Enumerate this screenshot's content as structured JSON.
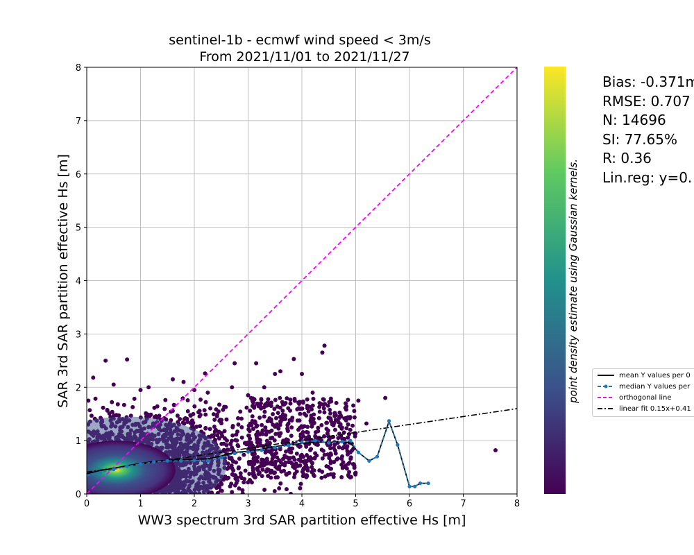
{
  "chart_data": {
    "type": "scatter",
    "title_line1": "sentinel-1b - ecmwf wind speed < 3m/s",
    "title_line2": "From 2021/11/01 to 2021/11/27",
    "xlabel": "WW3 spectrum 3rd SAR partition effective Hs [m]",
    "ylabel": "SAR 3rd SAR partition effective Hs [m]",
    "xlim": [
      0,
      8
    ],
    "ylim": [
      0,
      8
    ],
    "xticks": [
      "0",
      "1",
      "2",
      "3",
      "4",
      "5",
      "6",
      "7",
      "8"
    ],
    "yticks": [
      "0",
      "1",
      "2",
      "3",
      "4",
      "5",
      "6",
      "7",
      "8"
    ],
    "grid": true,
    "colorbar_label": "point density estimate using Gaussian kernels.",
    "colormap": [
      "#440154",
      "#3b528b",
      "#21918c",
      "#5ec962",
      "#fde725"
    ],
    "stats": {
      "bias": "Bias: -0.371m",
      "rmse": "RMSE: 0.707",
      "n": "N: 14696",
      "si": "SI: 77.65%",
      "r": "R: 0.36",
      "linreg": "Lin.reg: y=0."
    },
    "series": [
      {
        "name": "mean Y values per 0",
        "color": "#000000",
        "x": [
          0.0,
          0.25,
          0.5,
          0.75,
          1.0,
          1.25,
          1.5,
          1.75,
          2.0,
          2.25,
          2.5,
          2.75,
          3.0,
          3.25,
          3.5,
          3.75,
          4.0,
          4.25,
          4.5,
          4.75,
          4.9,
          5.05,
          5.25,
          5.4,
          5.62,
          5.78,
          6.0,
          6.1,
          6.2,
          6.35
        ],
        "y": [
          0.38,
          0.44,
          0.48,
          0.53,
          0.57,
          0.61,
          0.63,
          0.64,
          0.65,
          0.66,
          0.71,
          0.78,
          0.8,
          0.84,
          0.89,
          0.92,
          0.95,
          0.97,
          0.97,
          0.97,
          0.96,
          0.78,
          0.62,
          0.7,
          1.36,
          0.92,
          0.14,
          0.14,
          0.2,
          0.2
        ]
      },
      {
        "name": "median Y values per",
        "color": "#1f77b4",
        "x": [
          0.0,
          0.25,
          0.5,
          0.75,
          1.0,
          1.25,
          1.5,
          1.75,
          2.0,
          2.25,
          2.5,
          2.75,
          3.0,
          3.25,
          3.5,
          3.75,
          4.0,
          4.25,
          4.5,
          4.75,
          4.9,
          5.05,
          5.25,
          5.4,
          5.62,
          5.78,
          6.0,
          6.1,
          6.2,
          6.35
        ],
        "y": [
          0.34,
          0.4,
          0.46,
          0.52,
          0.56,
          0.6,
          0.62,
          0.62,
          0.63,
          0.62,
          0.68,
          0.76,
          0.79,
          0.82,
          0.87,
          0.91,
          0.97,
          1.0,
          0.96,
          0.98,
          1.0,
          0.78,
          0.62,
          0.7,
          1.37,
          0.92,
          0.14,
          0.14,
          0.2,
          0.2
        ]
      },
      {
        "name": "orthogonal line",
        "color": "#ff00ff",
        "x": [
          0,
          8
        ],
        "y": [
          0,
          8
        ]
      },
      {
        "name": "linear fit 0.15x+0.41",
        "color": "#000000",
        "x": [
          0,
          8
        ],
        "y": [
          0.41,
          1.6
        ]
      }
    ],
    "outliers": {
      "x": [
        0.03,
        0.12,
        0.35,
        0.75,
        1.15,
        1.6,
        2.2,
        2.25,
        2.75,
        3.15,
        3.5,
        3.6,
        3.85,
        4.0,
        4.38,
        4.42,
        4.9,
        5.05,
        5.55,
        7.6,
        2.0,
        2.7,
        3.3,
        4.7,
        5.2,
        0.5,
        1.0,
        1.8,
        3.0,
        4.2
      ],
      "y": [
        1.75,
        2.18,
        2.5,
        2.52,
        2.0,
        2.15,
        2.26,
        1.9,
        2.45,
        2.45,
        2.25,
        2.3,
        2.53,
        2.25,
        2.65,
        2.78,
        1.2,
        1.75,
        1.8,
        0.82,
        1.95,
        2.0,
        2.0,
        1.45,
        1.32,
        2.05,
        1.95,
        2.1,
        1.85,
        1.9
      ]
    }
  }
}
